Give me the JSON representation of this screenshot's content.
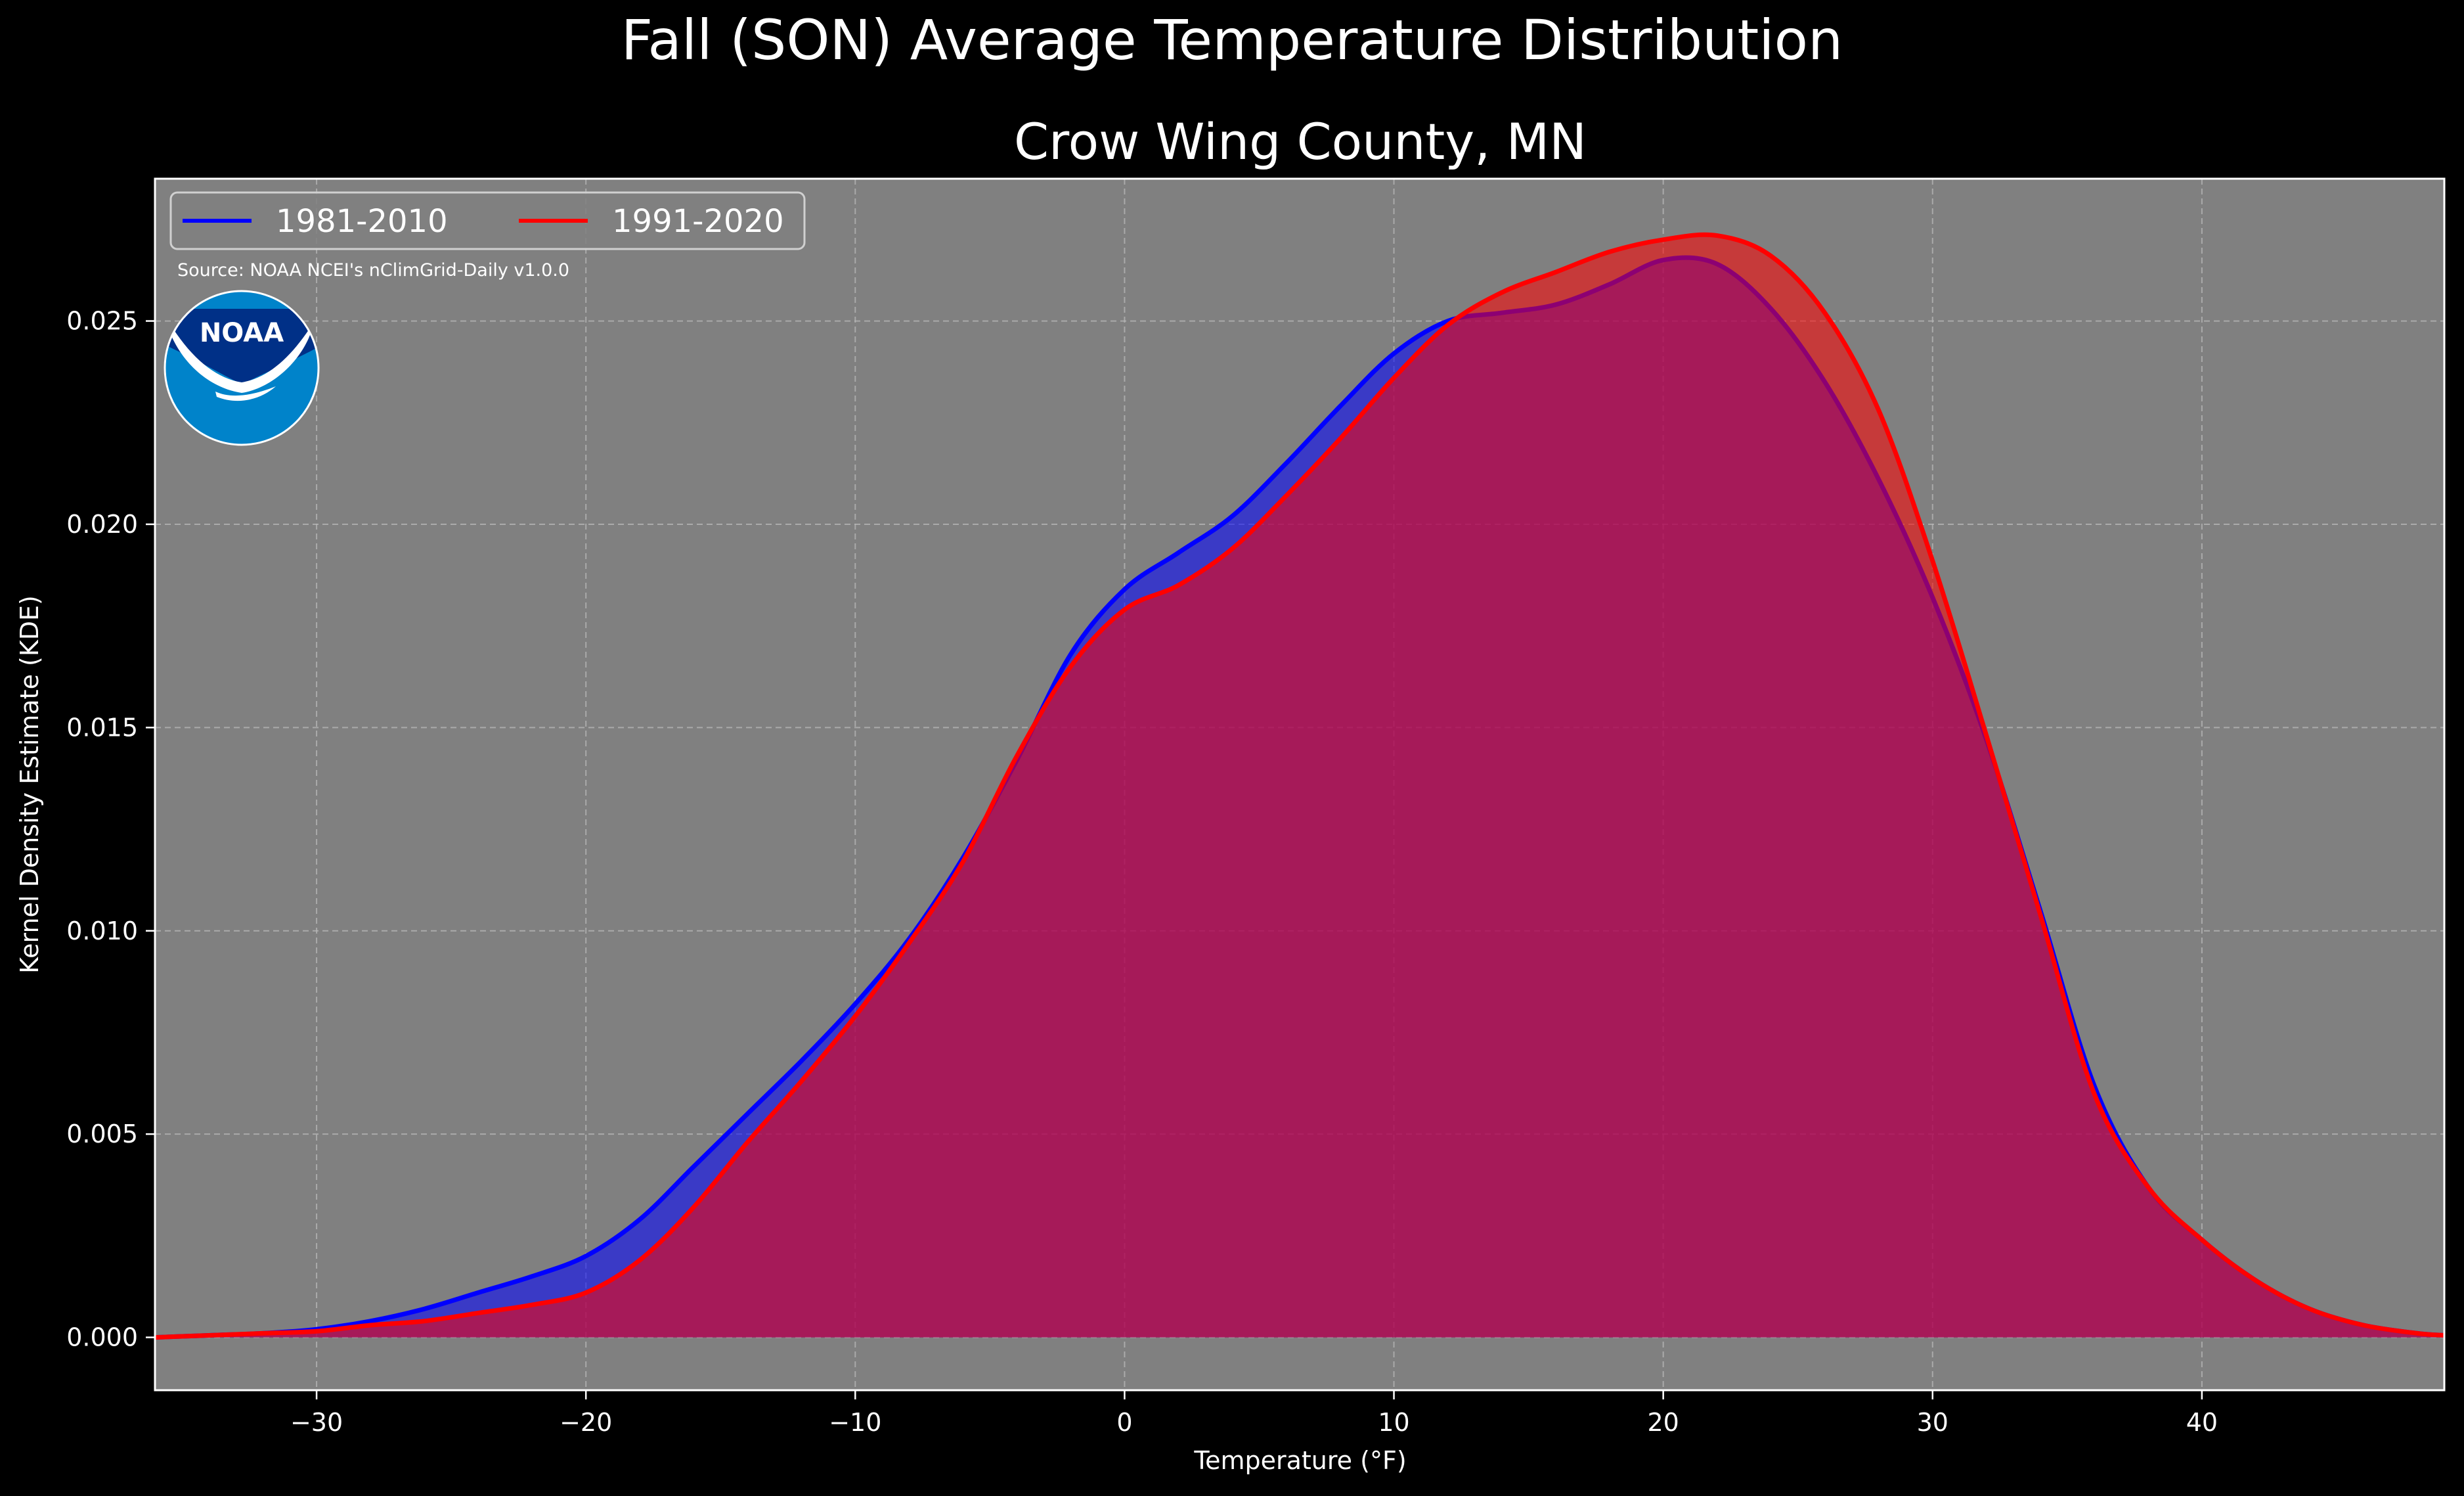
{
  "chart_data": {
    "type": "area",
    "title": "Fall (SON) Average Temperature Distribution",
    "subtitle": "Crow Wing County, MN",
    "xlabel": "Temperature (°F)",
    "ylabel": "Kernel Density Estimate (KDE)",
    "source_note": "Source: NOAA NCEI's nClimGrid-Daily v1.0.0",
    "logo_text": "NOAA",
    "xlim": [
      -36,
      49
    ],
    "ylim": [
      -0.0013,
      0.0285
    ],
    "xticks": [
      -30,
      -20,
      -10,
      0,
      10,
      20,
      30,
      40
    ],
    "xtick_labels": [
      "−30",
      "−20",
      "−10",
      "0",
      "10",
      "20",
      "30",
      "40"
    ],
    "yticks": [
      0.0,
      0.005,
      0.01,
      0.015,
      0.02,
      0.025
    ],
    "ytick_labels": [
      "0.000",
      "0.005",
      "0.010",
      "0.015",
      "0.020",
      "0.025"
    ],
    "grid": true,
    "legend_position": "top-left",
    "background": "#808080",
    "series": [
      {
        "name": "1981-2010",
        "color": "#0000ff",
        "x": [
          -36,
          -34,
          -32,
          -30,
          -28,
          -26,
          -24,
          -22,
          -20,
          -18,
          -16,
          -14,
          -12,
          -10,
          -8,
          -6,
          -4,
          -2,
          0,
          2,
          4,
          6,
          8,
          10,
          12,
          14,
          16,
          18,
          20,
          22,
          24,
          26,
          28,
          30,
          32,
          34,
          36,
          38,
          40,
          42,
          44,
          46,
          48,
          49
        ],
        "y": [
          0.0,
          5e-05,
          0.0001,
          0.0002,
          0.0004,
          0.0007,
          0.0011,
          0.0015,
          0.002,
          0.0029,
          0.0042,
          0.0055,
          0.0068,
          0.0082,
          0.0098,
          0.0118,
          0.0142,
          0.0168,
          0.0184,
          0.0193,
          0.0202,
          0.0215,
          0.0229,
          0.0242,
          0.025,
          0.0252,
          0.0254,
          0.0259,
          0.0265,
          0.0264,
          0.0253,
          0.0235,
          0.0211,
          0.0182,
          0.0147,
          0.0105,
          0.0062,
          0.0037,
          0.0024,
          0.0014,
          0.0007,
          0.0003,
          0.0001,
          5e-05
        ]
      },
      {
        "name": "1991-2020",
        "color": "#ff0000",
        "x": [
          -36,
          -34,
          -32,
          -30,
          -28,
          -26,
          -24,
          -22,
          -20,
          -18,
          -16,
          -14,
          -12,
          -10,
          -8,
          -6,
          -4,
          -2,
          0,
          2,
          4,
          6,
          8,
          10,
          12,
          14,
          16,
          18,
          20,
          22,
          24,
          26,
          28,
          30,
          32,
          34,
          36,
          38,
          40,
          42,
          44,
          46,
          48,
          49
        ],
        "y": [
          0.0,
          5e-05,
          0.0001,
          0.00015,
          0.0003,
          0.0004,
          0.0006,
          0.0008,
          0.0011,
          0.0019,
          0.0032,
          0.0048,
          0.0063,
          0.0079,
          0.0097,
          0.0117,
          0.0143,
          0.0165,
          0.0179,
          0.0185,
          0.0194,
          0.0207,
          0.0221,
          0.0236,
          0.0249,
          0.0257,
          0.0262,
          0.0267,
          0.027,
          0.0271,
          0.0266,
          0.0252,
          0.0228,
          0.0191,
          0.0148,
          0.0104,
          0.006,
          0.0037,
          0.0024,
          0.0014,
          0.0007,
          0.0003,
          0.0001,
          5e-05
        ]
      }
    ]
  }
}
